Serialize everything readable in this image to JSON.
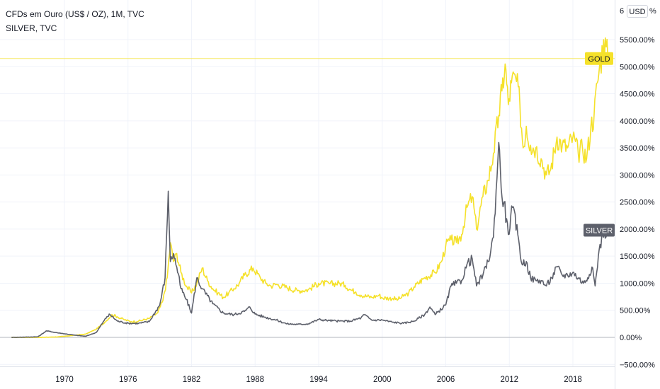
{
  "legend": {
    "main_series": "CFDs em Ouro (US$ / OZ), 1M, TVC",
    "compare_series": "SILVER, TVC"
  },
  "price_scale": {
    "currency_button": "USD",
    "top_partial_label": "6",
    "top_partial_suffix": "%"
  },
  "colors": {
    "gold": "#F5E12A",
    "silver": "#5D606B",
    "grid": "#F0F3FA",
    "zero_line": "#B2B5BE",
    "axis_text": "#131722"
  },
  "chart_data": {
    "type": "line",
    "title": "CFDs em Ouro (US$ / OZ), 1M, TVC",
    "ylabel": "",
    "xlabel": "",
    "y_unit": "%",
    "ylim": [
      -500,
      6000
    ],
    "xlim": [
      1965.0,
      2021.3
    ],
    "y_ticks": [
      -500,
      0,
      500,
      1000,
      1500,
      2000,
      2500,
      3000,
      3500,
      4000,
      4500,
      5000,
      5500
    ],
    "y_tick_labels": [
      "−500.00%",
      "0.00%",
      "500.00%",
      "1000.00%",
      "1500.00%",
      "2000.00%",
      "2500.00%",
      "3000.00%",
      "3500.00%",
      "4000.00%",
      "4500.00%",
      "5000.00%",
      "5500.00%"
    ],
    "x_ticks": [
      1970,
      1976,
      1982,
      1988,
      1994,
      2000,
      2006,
      2012,
      2018
    ],
    "x_tick_labels": [
      "1970",
      "1976",
      "1982",
      "1988",
      "1994",
      "2000",
      "2006",
      "2012",
      "2018"
    ],
    "grid": true,
    "series": [
      {
        "name": "GOLD",
        "last_value": 5150,
        "x": [
          1965.0,
          1968.0,
          1969.5,
          1971.0,
          1972.0,
          1973.0,
          1973.8,
          1974.5,
          1975.0,
          1975.6,
          1976.3,
          1977.0,
          1978.0,
          1978.8,
          1979.3,
          1979.7,
          1980.0,
          1980.3,
          1980.6,
          1981.0,
          1981.5,
          1982.0,
          1982.5,
          1983.0,
          1983.5,
          1984.0,
          1984.5,
          1985.0,
          1985.5,
          1986.0,
          1986.5,
          1987.0,
          1987.8,
          1988.5,
          1989.0,
          1989.5,
          1990.0,
          1991.0,
          1992.0,
          1993.0,
          1994.0,
          1995.0,
          1996.0,
          1996.5,
          1997.0,
          1997.5,
          1998.0,
          1999.0,
          1999.7,
          2000.0,
          2001.0,
          2001.5,
          2002.0,
          2002.5,
          2003.0,
          2004.0,
          2005.0,
          2005.6,
          2006.0,
          2006.5,
          2007.0,
          2007.5,
          2008.0,
          2008.5,
          2008.9,
          2009.5,
          2010.0,
          2010.5,
          2011.0,
          2011.3,
          2011.6,
          2011.9,
          2012.2,
          2012.6,
          2013.0,
          2013.3,
          2013.6,
          2014.0,
          2014.5,
          2015.0,
          2015.5,
          2015.9,
          2016.5,
          2017.0,
          2017.5,
          2018.0,
          2018.5,
          2018.9,
          2019.3,
          2019.7,
          2020.0,
          2020.3,
          2020.6,
          2020.9,
          2021.3
        ],
        "values": [
          0,
          0,
          10,
          40,
          60,
          150,
          280,
          420,
          380,
          330,
          290,
          300,
          350,
          450,
          680,
          1100,
          1750,
          1400,
          1550,
          1200,
          950,
          820,
          1000,
          1280,
          1050,
          900,
          820,
          740,
          820,
          900,
          1000,
          1150,
          1280,
          1100,
          1000,
          950,
          980,
          920,
          860,
          880,
          1000,
          990,
          1000,
          960,
          880,
          840,
          780,
          740,
          780,
          730,
          720,
          700,
          760,
          820,
          930,
          1100,
          1200,
          1400,
          1700,
          1800,
          1750,
          1900,
          2400,
          2600,
          2000,
          2600,
          2900,
          3400,
          4100,
          4550,
          5050,
          4300,
          4700,
          4800,
          4300,
          3500,
          3900,
          3550,
          3500,
          3300,
          3000,
          3100,
          3700,
          3550,
          3500,
          3700,
          3400,
          3500,
          3300,
          3900,
          4100,
          4700,
          5050,
          5500,
          5150
        ]
      },
      {
        "name": "SILVER",
        "last_value": 1980,
        "x": [
          1965.0,
          1967.5,
          1968.3,
          1969.5,
          1971.0,
          1972.0,
          1973.0,
          1974.0,
          1974.3,
          1975.0,
          1976.0,
          1977.0,
          1978.0,
          1979.0,
          1979.5,
          1979.8,
          1980.0,
          1980.3,
          1980.6,
          1981.0,
          1981.5,
          1982.0,
          1982.5,
          1983.0,
          1984.0,
          1985.0,
          1986.0,
          1987.0,
          1987.5,
          1988.0,
          1989.0,
          1990.0,
          1991.0,
          1992.0,
          1993.0,
          1994.0,
          1995.0,
          1996.0,
          1997.0,
          1998.0,
          1998.3,
          1999.0,
          2000.0,
          2001.0,
          2002.0,
          2003.0,
          2004.0,
          2004.5,
          2005.0,
          2006.0,
          2006.5,
          2007.0,
          2007.5,
          2008.0,
          2008.5,
          2008.9,
          2009.5,
          2010.0,
          2010.5,
          2011.0,
          2011.3,
          2011.5,
          2011.9,
          2012.3,
          2012.8,
          2013.2,
          2013.6,
          2014.0,
          2014.5,
          2015.0,
          2015.5,
          2016.0,
          2016.5,
          2017.0,
          2017.5,
          2018.0,
          2018.5,
          2019.0,
          2019.4,
          2019.8,
          2020.1,
          2020.4,
          2020.8,
          2021.3
        ],
        "values": [
          0,
          10,
          120,
          80,
          40,
          20,
          90,
          380,
          420,
          300,
          260,
          260,
          290,
          600,
          1100,
          2700,
          1400,
          1550,
          1300,
          900,
          700,
          450,
          1100,
          900,
          620,
          450,
          420,
          480,
          560,
          430,
          370,
          320,
          250,
          240,
          250,
          330,
          310,
          300,
          300,
          360,
          420,
          320,
          320,
          280,
          260,
          300,
          420,
          560,
          420,
          600,
          950,
          1000,
          1050,
          1350,
          1450,
          950,
          1150,
          1400,
          1850,
          3600,
          2600,
          2500,
          1900,
          2400,
          1900,
          1350,
          1400,
          1100,
          1050,
          1050,
          950,
          1100,
          1300,
          1150,
          1150,
          1200,
          1100,
          1000,
          1100,
          1300,
          950,
          1500,
          1900,
          1980
        ]
      }
    ],
    "price_line": {
      "series": "GOLD",
      "value": 5150
    },
    "series_tags": [
      "GOLD",
      "SILVER"
    ]
  }
}
